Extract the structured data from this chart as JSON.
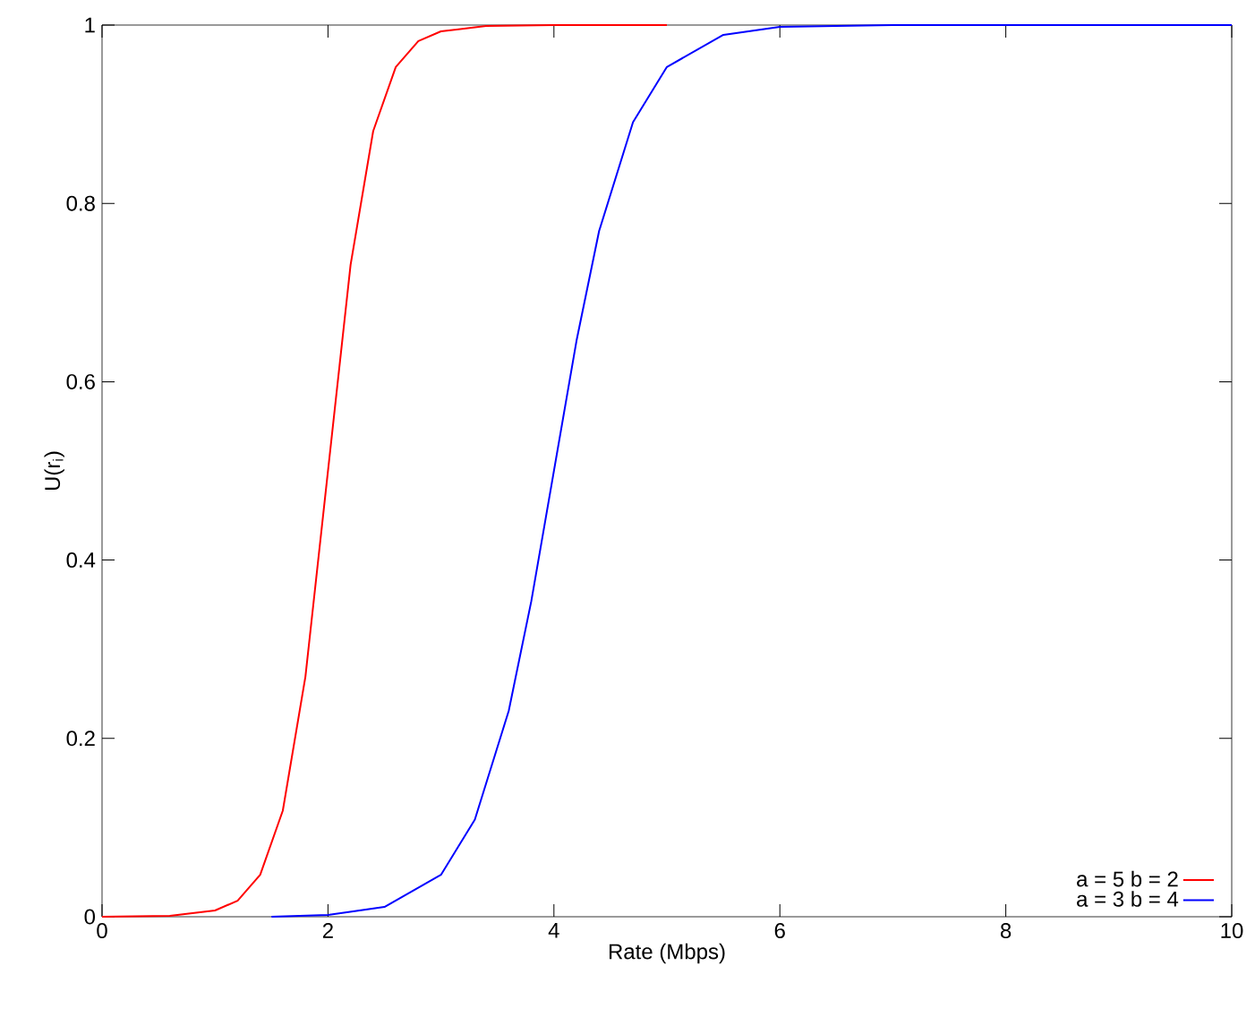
{
  "chart_data": {
    "type": "line",
    "xlabel": "Rate (Mbps)",
    "ylabel": "U(r$_{i}$)",
    "xlim": [
      0,
      10
    ],
    "ylim": [
      0,
      1
    ],
    "xticks": [
      0,
      2,
      4,
      6,
      8,
      10
    ],
    "yticks": [
      0,
      0.2,
      0.4,
      0.6,
      0.8,
      1
    ],
    "legend": "bottom right",
    "marker": "none",
    "line_style": "solid",
    "series": [
      {
        "name": "a = 5 b = 2",
        "color": "#ff0000",
        "x": [
          0,
          0.6,
          1.0,
          1.2,
          1.4,
          1.6,
          1.8,
          2.0,
          2.2,
          2.4,
          2.6,
          2.8,
          3.0,
          3.4,
          4,
          5
        ],
        "values": [
          0,
          0.001,
          0.007,
          0.018,
          0.047,
          0.119,
          0.269,
          0.5,
          0.731,
          0.881,
          0.953,
          0.982,
          0.993,
          0.999,
          1,
          1
        ]
      },
      {
        "name": "a = 3 b = 4",
        "color": "#0000ff",
        "x": [
          1.5,
          2.0,
          2.5,
          3.0,
          3.3,
          3.6,
          3.8,
          4.0,
          4.2,
          4.4,
          4.7,
          5.0,
          5.5,
          6,
          7,
          10
        ],
        "values": [
          0,
          0.002,
          0.011,
          0.047,
          0.109,
          0.231,
          0.354,
          0.5,
          0.646,
          0.769,
          0.891,
          0.953,
          0.989,
          0.998,
          1,
          1
        ]
      }
    ]
  }
}
